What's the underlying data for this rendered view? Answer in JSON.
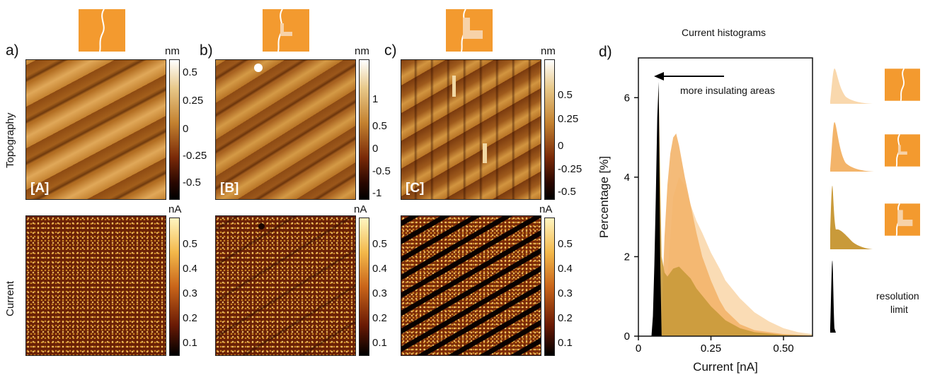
{
  "panels": [
    {
      "letter": "a)",
      "topo": {
        "unit": "nm",
        "ticks": [
          "0.5",
          "0.25",
          "0",
          "-0.25",
          "-0.5"
        ],
        "tag": "[A]"
      },
      "current": {
        "unit": "nA",
        "ticks": [
          "0.5",
          "0.4",
          "0.3",
          "0.2",
          "0.1"
        ]
      }
    },
    {
      "letter": "b)",
      "topo": {
        "unit": "nm",
        "ticks": [
          "1",
          "0.5",
          "0",
          "-0.5",
          "-1"
        ],
        "tag": "[B]"
      },
      "current": {
        "unit": "nA",
        "ticks": [
          "0.5",
          "0.4",
          "0.3",
          "0.2",
          "0.1"
        ]
      }
    },
    {
      "letter": "c)",
      "topo": {
        "unit": "nm",
        "ticks": [
          "0.5",
          "0.25",
          "0",
          "-0.25",
          "-0.5"
        ],
        "tag": "[C]"
      },
      "current": {
        "unit": "nA",
        "ticks": [
          "0.5",
          "0.4",
          "0.3",
          "0.2",
          "0.1"
        ]
      }
    }
  ],
  "row_labels": {
    "topography": "Topography",
    "current": "Current"
  },
  "histogram": {
    "letter": "d)",
    "title": "Current histograms",
    "annotation": "more insulating areas",
    "resolution_label_1": "resolution",
    "resolution_label_2": "limit"
  },
  "colors": {
    "orange": "#f39a2f",
    "hist_light": "#f9d8ad",
    "hist_mid": "#f3b46a",
    "hist_dark": "#c99a3a",
    "hist_black": "#000000"
  },
  "chart_data": {
    "type": "area",
    "title": "Current histograms",
    "xlabel": "Current [nA]",
    "ylabel": "Percentage [%]",
    "xlim": [
      0,
      0.6
    ],
    "ylim": [
      0,
      7
    ],
    "xticks": [
      0,
      0.25,
      0.5
    ],
    "xtick_labels": [
      "0",
      "0.25",
      "0.50"
    ],
    "yticks": [
      0,
      2,
      4,
      6
    ],
    "ytick_labels": [
      "0",
      "2",
      "4",
      "6"
    ],
    "grid": false,
    "series": [
      {
        "color": "#f9d8ad",
        "x": [
          0.08,
          0.1,
          0.12,
          0.14,
          0.16,
          0.18,
          0.2,
          0.22,
          0.25,
          0.28,
          0.3,
          0.35,
          0.4,
          0.45,
          0.5,
          0.55,
          0.6
        ],
        "y": [
          0.2,
          1.5,
          3.5,
          4.0,
          3.8,
          3.3,
          2.9,
          2.6,
          2.1,
          1.7,
          1.4,
          0.95,
          0.6,
          0.37,
          0.2,
          0.1,
          0.05
        ]
      },
      {
        "color": "#f3b46a",
        "x": [
          0.08,
          0.09,
          0.1,
          0.11,
          0.12,
          0.13,
          0.14,
          0.16,
          0.18,
          0.2,
          0.22,
          0.25,
          0.28,
          0.3,
          0.35,
          0.4,
          0.5,
          0.6
        ],
        "y": [
          0.5,
          2.5,
          3.8,
          4.6,
          5.0,
          5.1,
          4.8,
          4.0,
          3.3,
          2.6,
          2.0,
          1.4,
          0.9,
          0.65,
          0.3,
          0.15,
          0.05,
          0.02
        ]
      },
      {
        "color": "#c99a3a",
        "x": [
          0.06,
          0.065,
          0.07,
          0.075,
          0.08,
          0.09,
          0.1,
          0.12,
          0.14,
          0.16,
          0.18,
          0.2,
          0.25,
          0.3,
          0.35,
          0.4,
          0.5,
          0.6
        ],
        "y": [
          0.5,
          3.0,
          6.2,
          4.0,
          2.0,
          1.6,
          1.5,
          1.7,
          1.75,
          1.6,
          1.45,
          1.2,
          0.75,
          0.4,
          0.2,
          0.1,
          0.03,
          0.01
        ]
      },
      {
        "color": "#000000",
        "x": [
          0.045,
          0.05,
          0.055,
          0.06,
          0.065,
          0.07,
          0.075,
          0.08
        ],
        "y": [
          0.0,
          0.5,
          1.8,
          3.5,
          5.5,
          6.4,
          2.0,
          0.0
        ]
      }
    ]
  }
}
